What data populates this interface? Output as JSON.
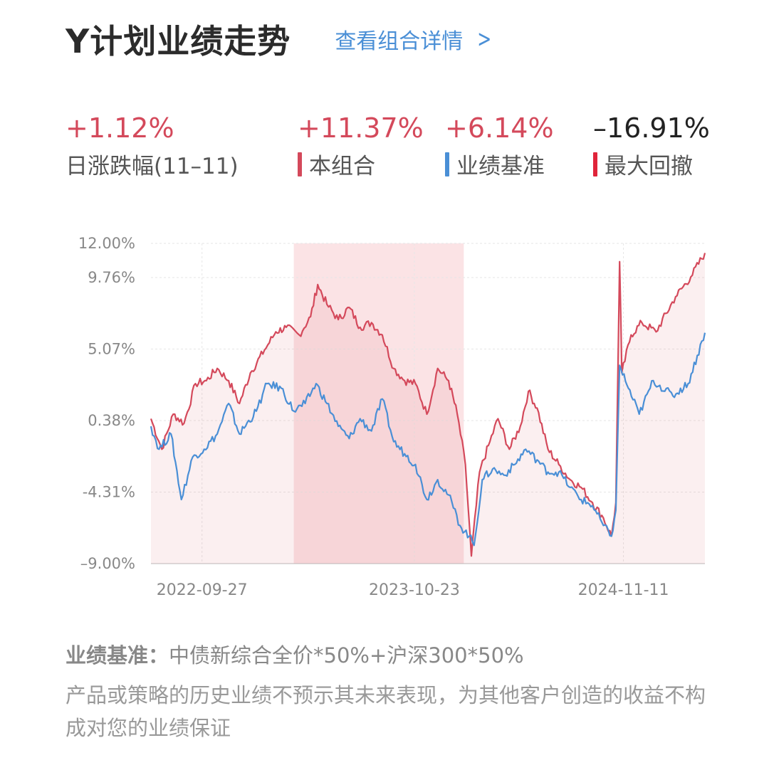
{
  "header": {
    "title": "Y计划业绩走势",
    "detail_link": "查看组合详情",
    "chevron_icon": "chevron-right-icon"
  },
  "stats": [
    {
      "value": "+1.12%",
      "label": "日涨跌幅(11–11)",
      "value_color": "#d4495b",
      "swatch": null
    },
    {
      "value": "+11.37%",
      "label": "本组合",
      "value_color": "#d4495b",
      "swatch": "#d4495b"
    },
    {
      "value": "+6.14%",
      "label": "业绩基准",
      "value_color": "#d4495b",
      "swatch": "#4a8fd6"
    },
    {
      "value": "–16.91%",
      "label": "最大回撤",
      "value_color": "#222222",
      "swatch": "#e0243a"
    }
  ],
  "chart_data": {
    "type": "line",
    "title": "",
    "y_tick_labels": [
      "12.00%",
      "9.76%",
      "5.07%",
      "0.38%",
      "-4.31%",
      "–9.00%"
    ],
    "y_ticks": [
      12.0,
      9.76,
      5.07,
      0.38,
      -4.31,
      -9.0
    ],
    "ylim": [
      -9.0,
      12.0
    ],
    "x_tick_labels": [
      "2022-09-27",
      "2023-10-23",
      "2024-11-11"
    ],
    "x_ticks": [
      "2022-09-27",
      "2023-10-23",
      "2024-11-11"
    ],
    "xlim": [
      "2022-06-25",
      "2025-04-10"
    ],
    "grid": true,
    "drawdown_shading": {
      "from": "2023-03-15",
      "to": "2024-01-22"
    },
    "series": [
      {
        "name": "本组合",
        "color": "#d4495b",
        "fill": true,
        "points": [
          [
            "2022-06-25",
            0.5
          ],
          [
            "2022-07-15",
            -1.5
          ],
          [
            "2022-08-05",
            0.8
          ],
          [
            "2022-08-25",
            0.2
          ],
          [
            "2022-09-15",
            2.8
          ],
          [
            "2022-10-05",
            3.0
          ],
          [
            "2022-10-25",
            3.8
          ],
          [
            "2022-11-15",
            3.0
          ],
          [
            "2022-12-05",
            1.5
          ],
          [
            "2022-12-25",
            3.5
          ],
          [
            "2023-01-20",
            5.0
          ],
          [
            "2023-02-10",
            6.2
          ],
          [
            "2023-03-01",
            6.5
          ],
          [
            "2023-03-25",
            6.0
          ],
          [
            "2023-04-15",
            7.2
          ],
          [
            "2023-04-28",
            9.3
          ],
          [
            "2023-05-15",
            8.0
          ],
          [
            "2023-06-05",
            7.0
          ],
          [
            "2023-06-25",
            7.8
          ],
          [
            "2023-07-15",
            6.5
          ],
          [
            "2023-08-05",
            6.8
          ],
          [
            "2023-08-25",
            6.0
          ],
          [
            "2023-09-15",
            3.8
          ],
          [
            "2023-10-05",
            3.0
          ],
          [
            "2023-10-25",
            2.8
          ],
          [
            "2023-11-15",
            0.8
          ],
          [
            "2023-12-05",
            3.8
          ],
          [
            "2023-12-25",
            3.0
          ],
          [
            "2024-01-10",
            0.8
          ],
          [
            "2024-01-25",
            -2.5
          ],
          [
            "2024-02-05",
            -8.5
          ],
          [
            "2024-02-20",
            -3.0
          ],
          [
            "2024-03-10",
            -1.0
          ],
          [
            "2024-03-25",
            0.5
          ],
          [
            "2024-04-15",
            -1.5
          ],
          [
            "2024-05-05",
            0.0
          ],
          [
            "2024-05-20",
            2.3
          ],
          [
            "2024-06-05",
            1.2
          ],
          [
            "2024-06-25",
            -1.5
          ],
          [
            "2024-07-15",
            -2.5
          ],
          [
            "2024-08-05",
            -3.5
          ],
          [
            "2024-08-25",
            -4.0
          ],
          [
            "2024-09-15",
            -5.0
          ],
          [
            "2024-10-05",
            -6.0
          ],
          [
            "2024-10-20",
            -7.2
          ],
          [
            "2024-10-28",
            -5.0
          ],
          [
            "2024-11-04",
            10.8
          ],
          [
            "2024-11-08",
            3.5
          ],
          [
            "2024-11-25",
            6.0
          ],
          [
            "2024-12-15",
            6.8
          ],
          [
            "2025-01-10",
            6.2
          ],
          [
            "2025-02-15",
            8.5
          ],
          [
            "2025-03-15",
            9.8
          ],
          [
            "2025-04-10",
            11.37
          ]
        ]
      },
      {
        "name": "业绩基准",
        "color": "#4a8fd6",
        "fill": false,
        "points": [
          [
            "2022-06-25",
            0.0
          ],
          [
            "2022-07-10",
            -1.5
          ],
          [
            "2022-08-01",
            -0.5
          ],
          [
            "2022-08-20",
            -4.8
          ],
          [
            "2022-09-10",
            -2.0
          ],
          [
            "2022-10-01",
            -1.5
          ],
          [
            "2022-10-25",
            -0.5
          ],
          [
            "2022-11-15",
            1.5
          ],
          [
            "2022-12-05",
            -0.5
          ],
          [
            "2023-01-05",
            1.0
          ],
          [
            "2023-01-25",
            2.8
          ],
          [
            "2023-02-20",
            2.5
          ],
          [
            "2023-03-15",
            1.0
          ],
          [
            "2023-04-05",
            1.5
          ],
          [
            "2023-04-25",
            2.8
          ],
          [
            "2023-05-15",
            1.5
          ],
          [
            "2023-06-05",
            0.0
          ],
          [
            "2023-06-25",
            -0.8
          ],
          [
            "2023-07-15",
            0.5
          ],
          [
            "2023-08-05",
            -0.3
          ],
          [
            "2023-08-25",
            1.8
          ],
          [
            "2023-09-15",
            -1.0
          ],
          [
            "2023-10-05",
            -1.8
          ],
          [
            "2023-10-25",
            -2.5
          ],
          [
            "2023-11-15",
            -4.8
          ],
          [
            "2023-12-05",
            -3.5
          ],
          [
            "2023-12-25",
            -4.5
          ],
          [
            "2024-01-15",
            -6.5
          ],
          [
            "2024-02-01",
            -7.2
          ],
          [
            "2024-02-10",
            -7.8
          ],
          [
            "2024-02-25",
            -3.5
          ],
          [
            "2024-03-15",
            -2.8
          ],
          [
            "2024-04-05",
            -3.2
          ],
          [
            "2024-04-25",
            -2.5
          ],
          [
            "2024-05-15",
            -1.5
          ],
          [
            "2024-06-05",
            -2.2
          ],
          [
            "2024-06-25",
            -3.0
          ],
          [
            "2024-07-15",
            -3.0
          ],
          [
            "2024-08-05",
            -4.0
          ],
          [
            "2024-08-25",
            -4.8
          ],
          [
            "2024-09-15",
            -5.2
          ],
          [
            "2024-10-05",
            -6.5
          ],
          [
            "2024-10-20",
            -7.2
          ],
          [
            "2024-10-28",
            -5.5
          ],
          [
            "2024-11-04",
            4.0
          ],
          [
            "2024-11-20",
            2.5
          ],
          [
            "2024-12-10",
            0.8
          ],
          [
            "2025-01-05",
            3.0
          ],
          [
            "2025-02-10",
            2.0
          ],
          [
            "2025-03-10",
            2.8
          ],
          [
            "2025-04-10",
            6.14
          ]
        ]
      }
    ]
  },
  "footer": {
    "benchmark_label": "业绩基准：",
    "benchmark_text": "中债新综合全价*50%+沪深300*50%",
    "disclaimer": "产品或策略的历史业绩不预示其未来表现，为其他客户创造的收益不构成对您的业绩保证"
  }
}
